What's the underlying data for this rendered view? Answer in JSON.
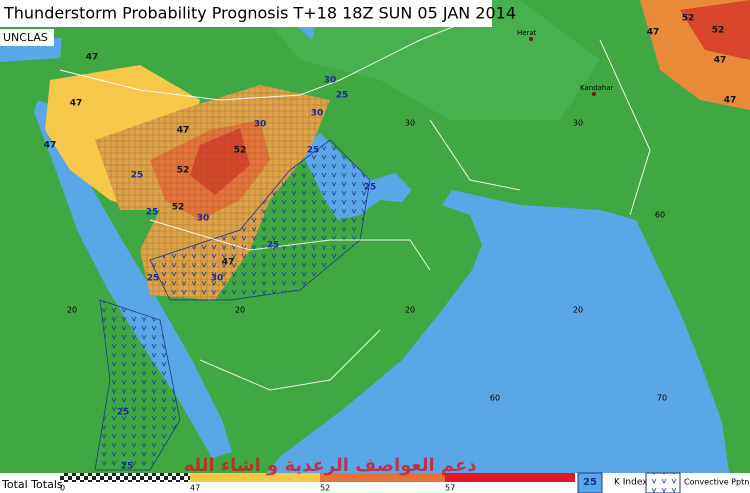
{
  "header": {
    "title": "Thunderstorm Probability Prognosis T+18 18Z SUN 05 JAN 2014",
    "classification": "UNCLAS"
  },
  "map": {
    "places": [
      "Herat",
      "Kandahar"
    ],
    "grid_labels": [
      "30",
      "30",
      "20",
      "20",
      "20",
      "20",
      "60",
      "60",
      "70"
    ],
    "contour_labels": [
      "47",
      "47",
      "47",
      "47",
      "47",
      "47",
      "47",
      "47",
      "52",
      "52",
      "52",
      "52",
      "52",
      "30",
      "30",
      "30",
      "30",
      "30",
      "25",
      "25",
      "25",
      "25",
      "25",
      "25",
      "25",
      "25",
      "25"
    ],
    "watermark": "دعم العواصف الرعدية و اشاء الله"
  },
  "legend": {
    "title": "Total Totals",
    "ticks": [
      "0",
      "47",
      "52",
      "57"
    ],
    "k_index_sample": "25",
    "k_index": "K Index",
    "convective": "Convective Pptn"
  }
}
